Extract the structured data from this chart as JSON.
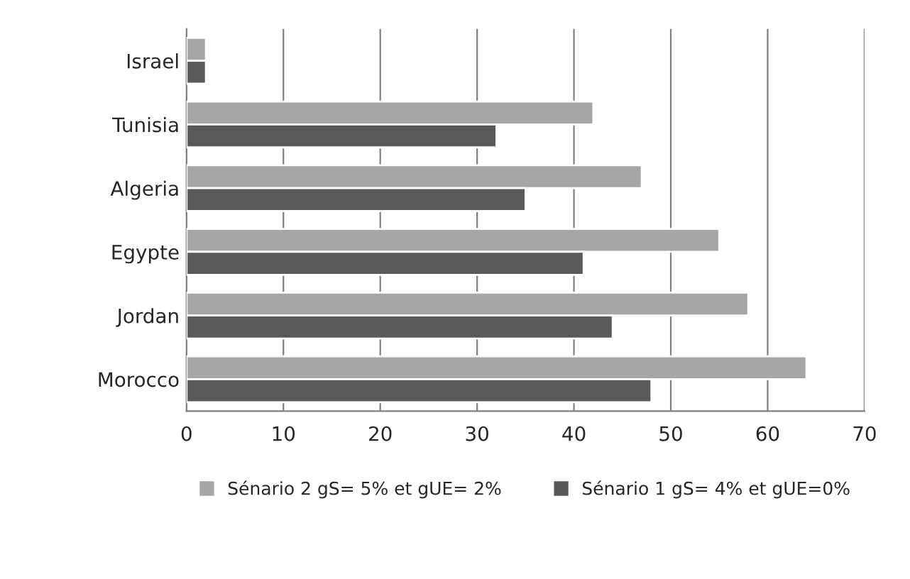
{
  "chart_data": {
    "type": "bar",
    "orientation": "horizontal",
    "categories": [
      "Israel",
      "Tunisia",
      "Algeria",
      "Egypte",
      "Jordan",
      "Morocco"
    ],
    "series": [
      {
        "name": "Sénario 2 gS= 5% et gUE= 2%",
        "color": "#a6a6a6",
        "values": [
          2,
          42,
          47,
          55,
          58,
          64
        ]
      },
      {
        "name": "Sénario 1 gS= 4% et gUE=0%",
        "color": "#595959",
        "values": [
          2,
          32,
          35,
          41,
          44,
          48
        ]
      }
    ],
    "xlim": [
      0,
      70
    ],
    "xticks": [
      0,
      10,
      20,
      30,
      40,
      50,
      60,
      70
    ],
    "grid": "x",
    "legend": "bottom"
  }
}
